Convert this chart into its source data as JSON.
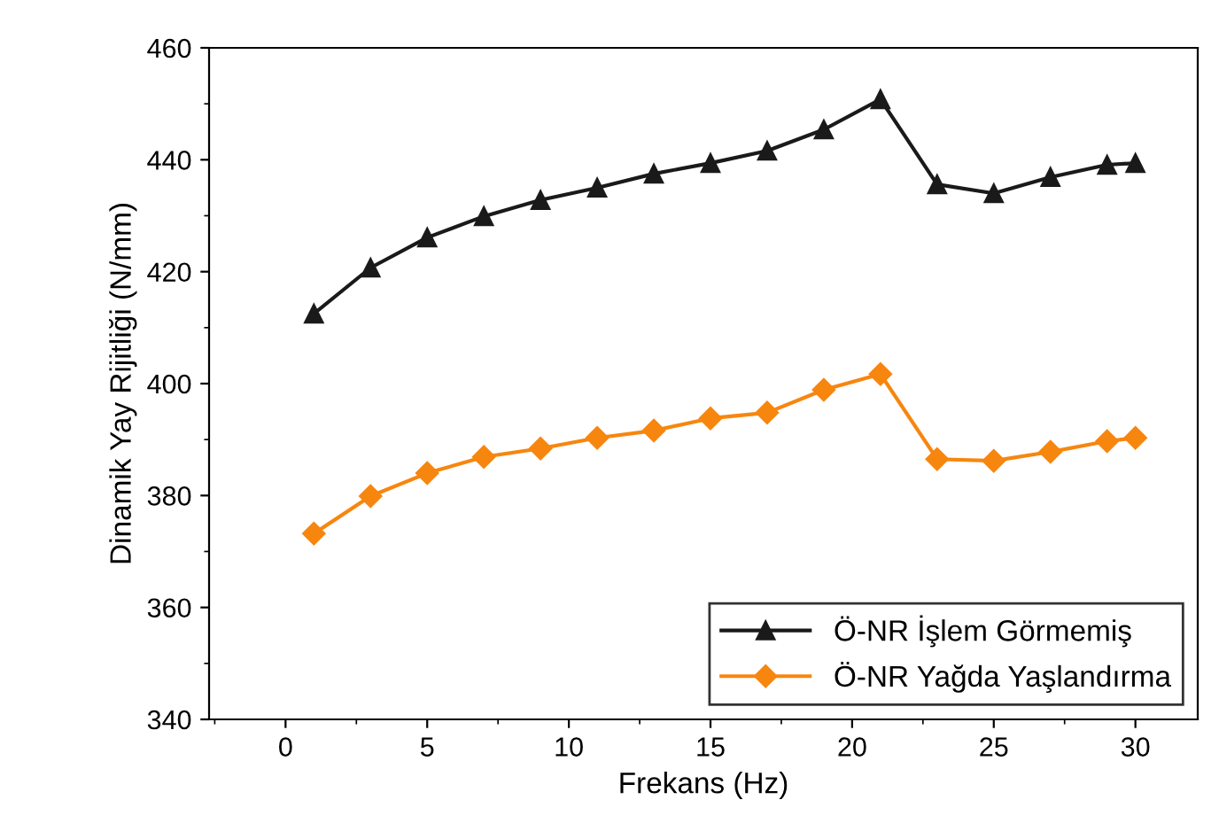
{
  "chart_data": {
    "type": "line",
    "xlabel": "Frekans (Hz)",
    "ylabel": "Dinamik Yay Rijitliği (N/mm)",
    "x": [
      1,
      3,
      5,
      7,
      9,
      11,
      13,
      15,
      17,
      19,
      21,
      23,
      25,
      27,
      29,
      30
    ],
    "series": [
      {
        "name": "Ö-NR İşlem Görmemiş",
        "color": "#1a1a1a",
        "marker": "triangle",
        "values": [
          412.5,
          420.7,
          426.1,
          429.9,
          432.8,
          435.0,
          437.5,
          439.4,
          441.6,
          445.4,
          450.8,
          435.6,
          434.0,
          436.9,
          439.1,
          439.4
        ]
      },
      {
        "name": "Ö-NR Yağda Yaşlandırma",
        "color": "#f7860f",
        "marker": "diamond",
        "values": [
          373.2,
          379.9,
          384.0,
          386.9,
          388.4,
          390.3,
          391.6,
          393.8,
          394.8,
          398.9,
          401.7,
          386.5,
          386.2,
          387.8,
          389.7,
          390.3
        ]
      }
    ],
    "xlim": [
      -2.7,
      32.2
    ],
    "xticks": [
      0,
      5,
      10,
      15,
      20,
      25,
      30
    ],
    "ylim": [
      340,
      460
    ],
    "yticks": [
      340,
      360,
      380,
      400,
      420,
      440,
      460
    ],
    "grid": false,
    "legend": "bottom right",
    "line_style": "solid"
  }
}
